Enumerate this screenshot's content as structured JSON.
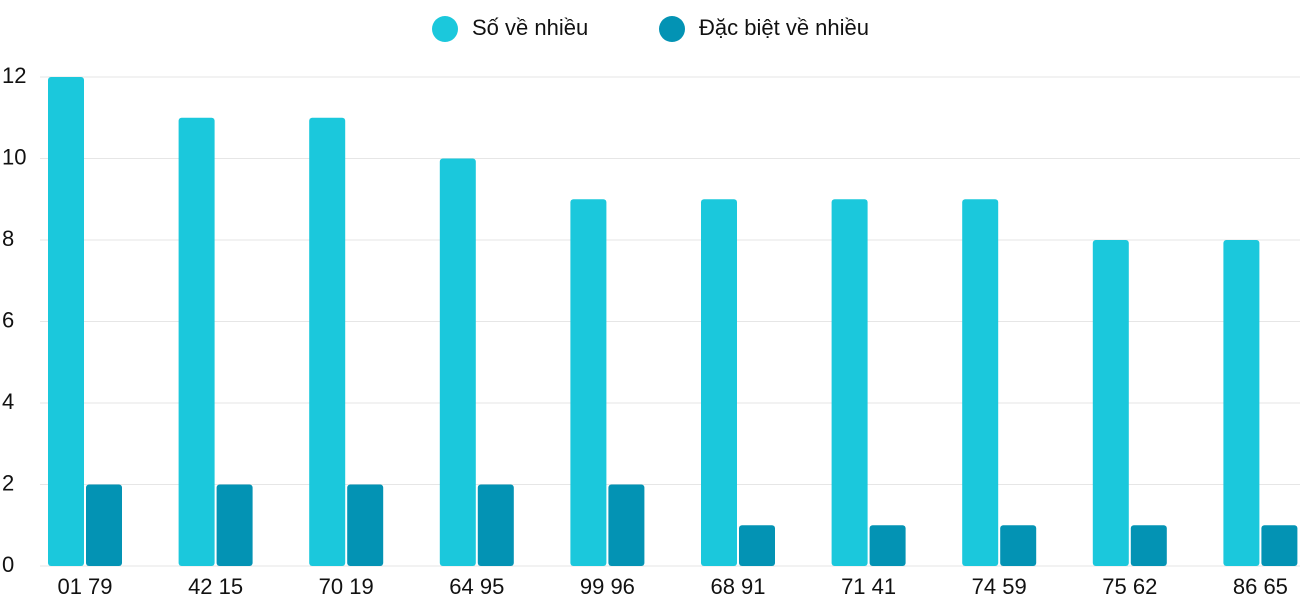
{
  "chart_data": {
    "type": "bar",
    "categories": [
      "01 79",
      "42 15",
      "70 19",
      "64 95",
      "99 96",
      "68 91",
      "71 41",
      "74 59",
      "75 62",
      "86 65"
    ],
    "series": [
      {
        "name": "Số về nhiều",
        "color": "#1bc8dc",
        "values": [
          12,
          11,
          11,
          10,
          9,
          9,
          9,
          9,
          8,
          8
        ]
      },
      {
        "name": "Đặc biệt về nhiều",
        "color": "#0393b4",
        "values": [
          2,
          2,
          2,
          2,
          2,
          1,
          1,
          1,
          1,
          1
        ]
      }
    ],
    "ylim": [
      0,
      12
    ],
    "yticks": [
      0,
      2,
      4,
      6,
      8,
      10,
      12
    ],
    "grid": true,
    "legend": "top"
  }
}
